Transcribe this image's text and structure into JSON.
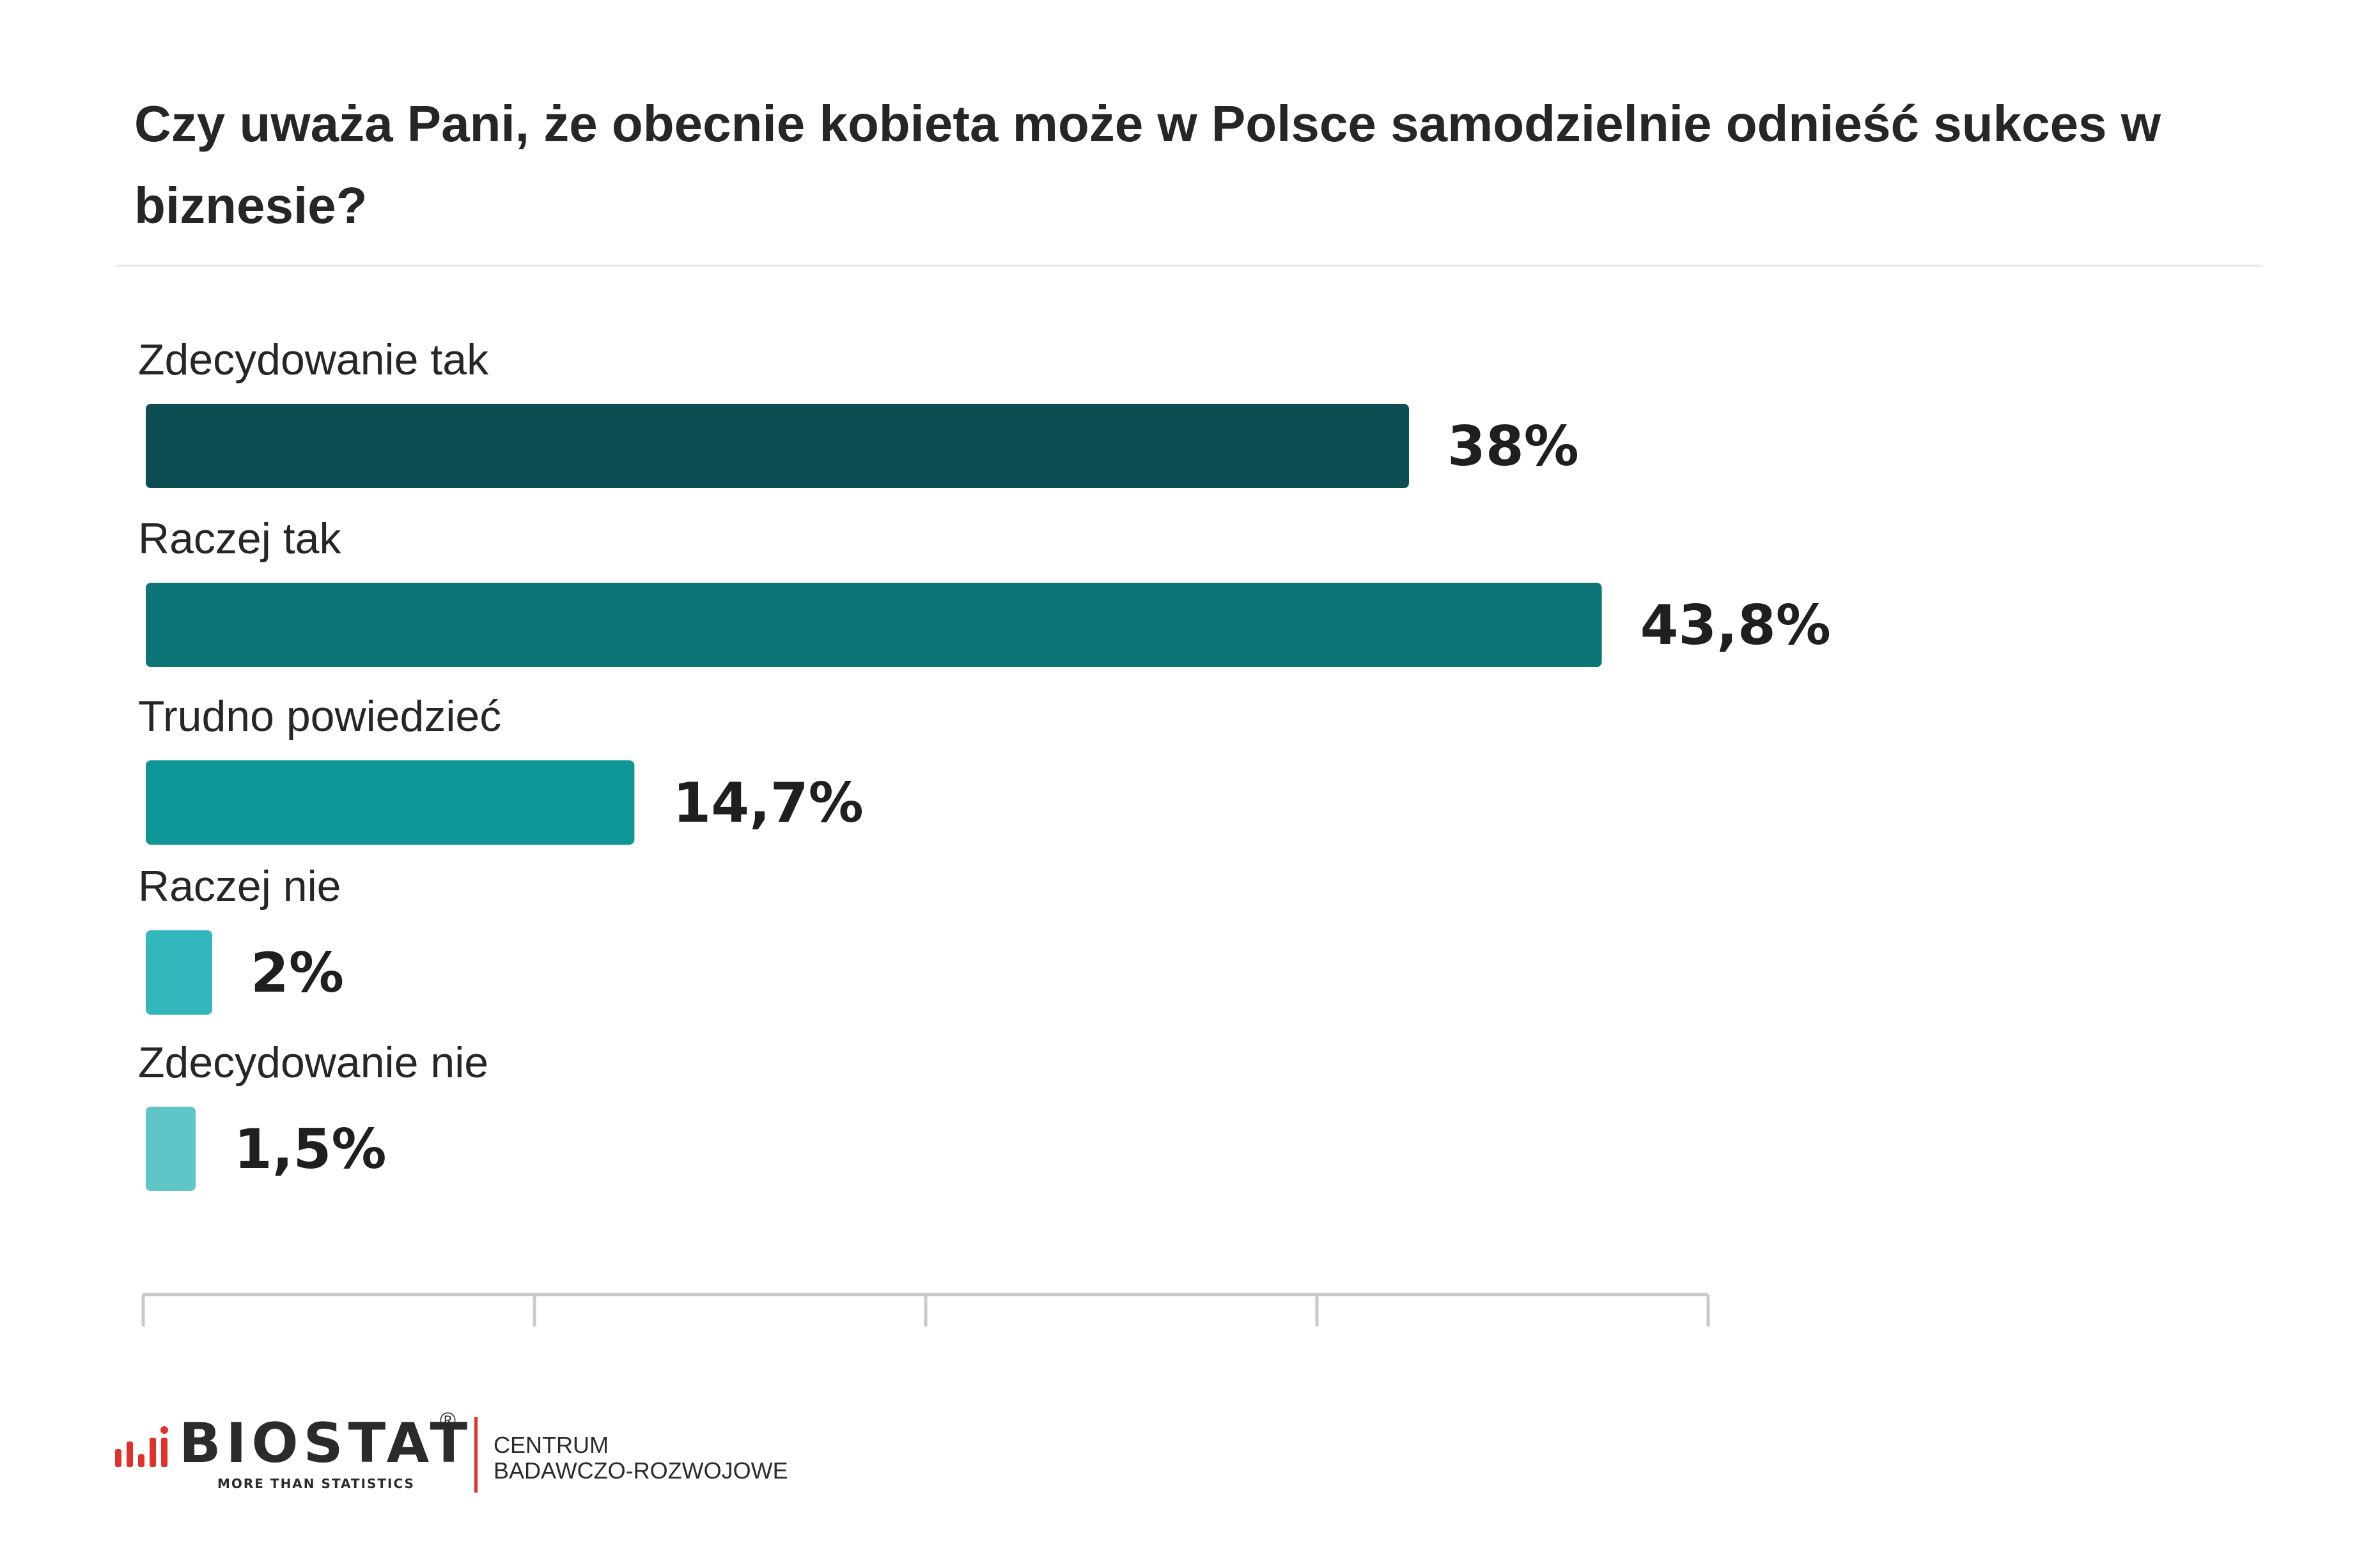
{
  "title": "Czy uważa Pani, że obecnie kobieta może w Polsce samodzielnie odnieść sukces w biznesie?",
  "chart_data": {
    "type": "bar",
    "orientation": "horizontal",
    "categories": [
      "Zdecydowanie tak",
      "Raczej tak",
      "Trudno powiedzieć",
      "Raczej nie",
      "Zdecydowanie nie"
    ],
    "values": [
      38,
      43.8,
      14.7,
      2,
      1.5
    ],
    "value_labels": [
      "38%",
      "43,8%",
      "14,7%",
      "2%",
      "1,5%"
    ],
    "colors": [
      "#0b4f55",
      "#0d7575",
      "#0e9696",
      "#33b7bd",
      "#5fc5c6"
    ],
    "xlim": [
      0,
      47.2
    ],
    "title": "Czy uważa Pani, że obecnie kobieta może w Polsce samodzielnie odnieść sukces w biznesie?",
    "xlabel": "",
    "ylabel": "",
    "grid": false,
    "legend": "none"
  },
  "footer": {
    "brand": "BIOSTAT",
    "registered": "®",
    "tagline": "MORE THAN STATISTICS",
    "subtitle_line1": "CENTRUM",
    "subtitle_line2": "BADAWCZO-ROZWOJOWE",
    "brand_color": "#e0312b"
  }
}
